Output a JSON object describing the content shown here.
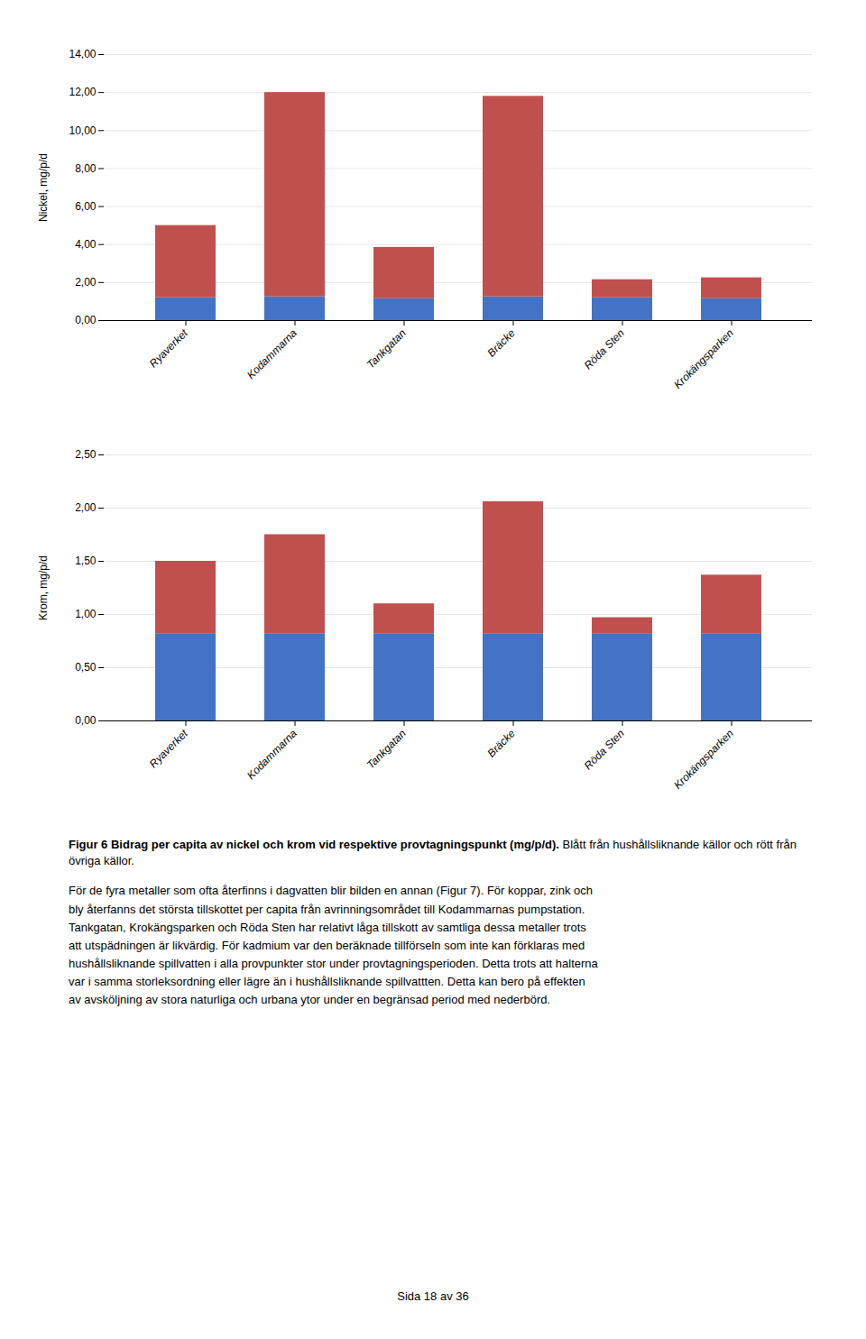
{
  "chart_data": [
    {
      "type": "bar",
      "stacked": true,
      "grid": true,
      "categories": [
        "Ryaverket",
        "Kodammarna",
        "Tankgatan",
        "Bräcke",
        "Röda Sten",
        "Krokängsparken"
      ],
      "series": [
        {
          "color": "#4472C4",
          "values": [
            1.2,
            1.25,
            1.15,
            1.25,
            1.2,
            1.15
          ]
        },
        {
          "color": "#C0504D",
          "values": [
            3.8,
            10.75,
            2.7,
            10.55,
            0.95,
            1.1
          ]
        }
      ],
      "ylabel": "Nickel, mg/p/d",
      "ylim": [
        0,
        14
      ],
      "yticks": [
        {
          "value": 0,
          "label": "0,00"
        },
        {
          "value": 2,
          "label": "2,00"
        },
        {
          "value": 4,
          "label": "4,00"
        },
        {
          "value": 6,
          "label": "6,00"
        },
        {
          "value": 8,
          "label": "8,00"
        },
        {
          "value": 10,
          "label": "10,00"
        },
        {
          "value": 12,
          "label": "12,00"
        },
        {
          "value": 14,
          "label": "14,00"
        }
      ]
    },
    {
      "type": "bar",
      "stacked": true,
      "grid": true,
      "categories": [
        "Ryaverket",
        "Kodammarna",
        "Tankgatan",
        "Bräcke",
        "Röda Sten",
        "Krokängsparken"
      ],
      "series": [
        {
          "color": "#4472C4",
          "values": [
            0.82,
            0.82,
            0.82,
            0.82,
            0.82,
            0.82
          ]
        },
        {
          "color": "#C0504D",
          "values": [
            0.68,
            0.93,
            0.28,
            1.24,
            0.15,
            0.55
          ]
        }
      ],
      "ylabel": "Krom, mg/p/d",
      "ylim": [
        0,
        2.5
      ],
      "yticks": [
        {
          "value": 0,
          "label": "0,00"
        },
        {
          "value": 0.5,
          "label": "0,50"
        },
        {
          "value": 1,
          "label": "1,00"
        },
        {
          "value": 1.5,
          "label": "1,50"
        },
        {
          "value": 2,
          "label": "2,00"
        },
        {
          "value": 2.5,
          "label": "2,50"
        }
      ]
    }
  ],
  "caption": [
    "Figur 6 Bidrag per capita av nickel och krom vid respektive provtagningspunkt (mg/p/d).",
    " Blått från hushållsliknande källor och rött från övriga källor."
  ],
  "body_text": [
    "För de fyra metaller som ofta återfinns i dagvatten blir bilden en annan (Figur 7). För koppar, zink och",
    "bly återfanns det största tillskottet per capita från avrinningsområdet till Kodammarnas pumpstation.",
    "Tankgatan, Krokängsparken och Röda Sten har relativt låga tillskott av samtliga dessa metaller trots",
    "att utspädningen är likvärdig. För kadmium var den beräknade tillförseln som inte kan förklaras med",
    "hushållsliknande spillvatten i alla provpunkter stor under provtagningsperioden. Detta trots att halterna",
    "var i samma storleksordning eller lägre än i hushållsliknande spillvattten. Detta kan bero på effekten",
    "av avsköljning av stora naturliga och urbana ytor under en begränsad period med nederbörd."
  ],
  "page_text": "Sida 18 av 36"
}
